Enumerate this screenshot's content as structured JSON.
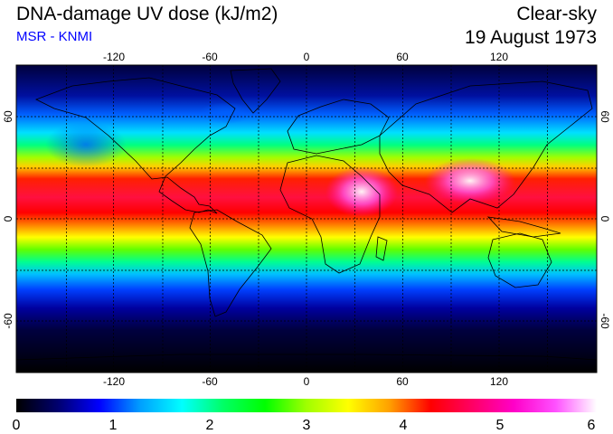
{
  "header": {
    "title": "DNA-damage UV dose (kJ/m2)",
    "subtitle": "MSR - KNMI",
    "subtitle_color": "#0000ff",
    "condition": "Clear-sky",
    "date": "19 August 1973"
  },
  "map": {
    "lon_ticks": [
      "-120",
      "-60",
      "0",
      "60",
      "120"
    ],
    "lat_ticks": [
      "60",
      "0",
      "-60"
    ],
    "gridlines": "dashed every 30 degrees"
  },
  "colorbar": {
    "labels": [
      "0",
      "1",
      "2",
      "3",
      "4",
      "5",
      "6"
    ],
    "min": 0,
    "max": 6,
    "colors": [
      "#000000",
      "#00006e",
      "#0000ff",
      "#00a0ff",
      "#00ffff",
      "#00ff64",
      "#00ff00",
      "#a0ff00",
      "#ffff00",
      "#ffa000",
      "#ff0000",
      "#ff0064",
      "#ff00c8",
      "#ff50ff",
      "#ffffff"
    ]
  }
}
